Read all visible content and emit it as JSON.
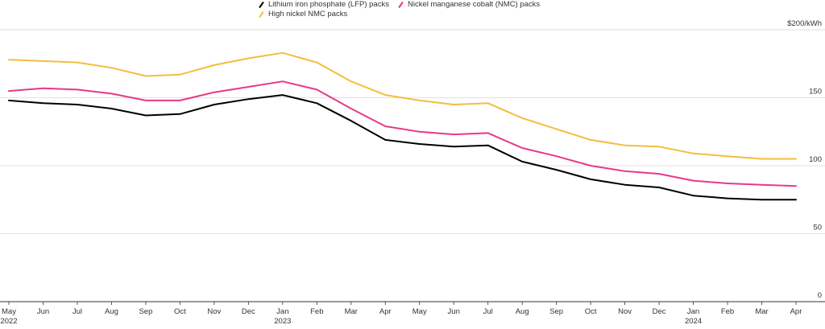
{
  "legend": {
    "lfp_label": "Lithium iron phosphate (LFP) packs",
    "nmc_label": "Nickel manganese cobalt (NMC) packs",
    "high_nickel_label": "High nickel NMC packs"
  },
  "chart_data": {
    "type": "line",
    "ylabel": "$200/kWh",
    "ylim": [
      0,
      200
    ],
    "yticks": [
      {
        "value": 200,
        "label": "$200/kWh"
      },
      {
        "value": 150,
        "label": "150"
      },
      {
        "value": 100,
        "label": "100"
      },
      {
        "value": 50,
        "label": "50"
      },
      {
        "value": 0,
        "label": "0"
      }
    ],
    "grid": true,
    "legend_position": "top-left",
    "categories": [
      "May 2022",
      "Jun 2022",
      "Jul 2022",
      "Aug 2022",
      "Sep 2022",
      "Oct 2022",
      "Nov 2022",
      "Dec 2022",
      "Jan 2023",
      "Feb 2023",
      "Mar 2023",
      "Apr 2023",
      "May 2023",
      "Jun 2023",
      "Jul 2023",
      "Aug 2023",
      "Sep 2023",
      "Oct 2023",
      "Nov 2023",
      "Dec 2023",
      "Jan 2024",
      "Feb 2024",
      "Mar 2024",
      "Apr 2024"
    ],
    "xtick_labels": [
      {
        "month": "May",
        "year": "2022"
      },
      {
        "month": "Jun",
        "year": ""
      },
      {
        "month": "Jul",
        "year": ""
      },
      {
        "month": "Aug",
        "year": ""
      },
      {
        "month": "Sep",
        "year": ""
      },
      {
        "month": "Oct",
        "year": ""
      },
      {
        "month": "Nov",
        "year": ""
      },
      {
        "month": "Dec",
        "year": ""
      },
      {
        "month": "Jan",
        "year": "2023"
      },
      {
        "month": "Feb",
        "year": ""
      },
      {
        "month": "Mar",
        "year": ""
      },
      {
        "month": "Apr",
        "year": ""
      },
      {
        "month": "May",
        "year": ""
      },
      {
        "month": "Jun",
        "year": ""
      },
      {
        "month": "Jul",
        "year": ""
      },
      {
        "month": "Aug",
        "year": ""
      },
      {
        "month": "Sep",
        "year": ""
      },
      {
        "month": "Oct",
        "year": ""
      },
      {
        "month": "Nov",
        "year": ""
      },
      {
        "month": "Dec",
        "year": ""
      },
      {
        "month": "Jan",
        "year": "2024"
      },
      {
        "month": "Feb",
        "year": ""
      },
      {
        "month": "Mar",
        "year": ""
      },
      {
        "month": "Apr",
        "year": ""
      }
    ],
    "series": [
      {
        "name": "Lithium iron phosphate (LFP) packs",
        "color": "#000000",
        "values": [
          148,
          146,
          145,
          142,
          137,
          138,
          145,
          149,
          152,
          146,
          133,
          119,
          116,
          114,
          115,
          103,
          97,
          90,
          86,
          84,
          78,
          76,
          75,
          75
        ]
      },
      {
        "name": "Nickel manganese cobalt (NMC) packs",
        "color": "#e8388a",
        "values": [
          155,
          157,
          156,
          153,
          148,
          148,
          154,
          158,
          162,
          156,
          142,
          129,
          125,
          123,
          124,
          113,
          107,
          100,
          96,
          94,
          89,
          87,
          86,
          85
        ]
      },
      {
        "name": "High nickel NMC packs",
        "color": "#f2be3c",
        "values": [
          178,
          177,
          176,
          172,
          166,
          167,
          174,
          179,
          183,
          176,
          162,
          152,
          148,
          145,
          146,
          135,
          127,
          119,
          115,
          114,
          109,
          107,
          105,
          105
        ]
      }
    ]
  }
}
